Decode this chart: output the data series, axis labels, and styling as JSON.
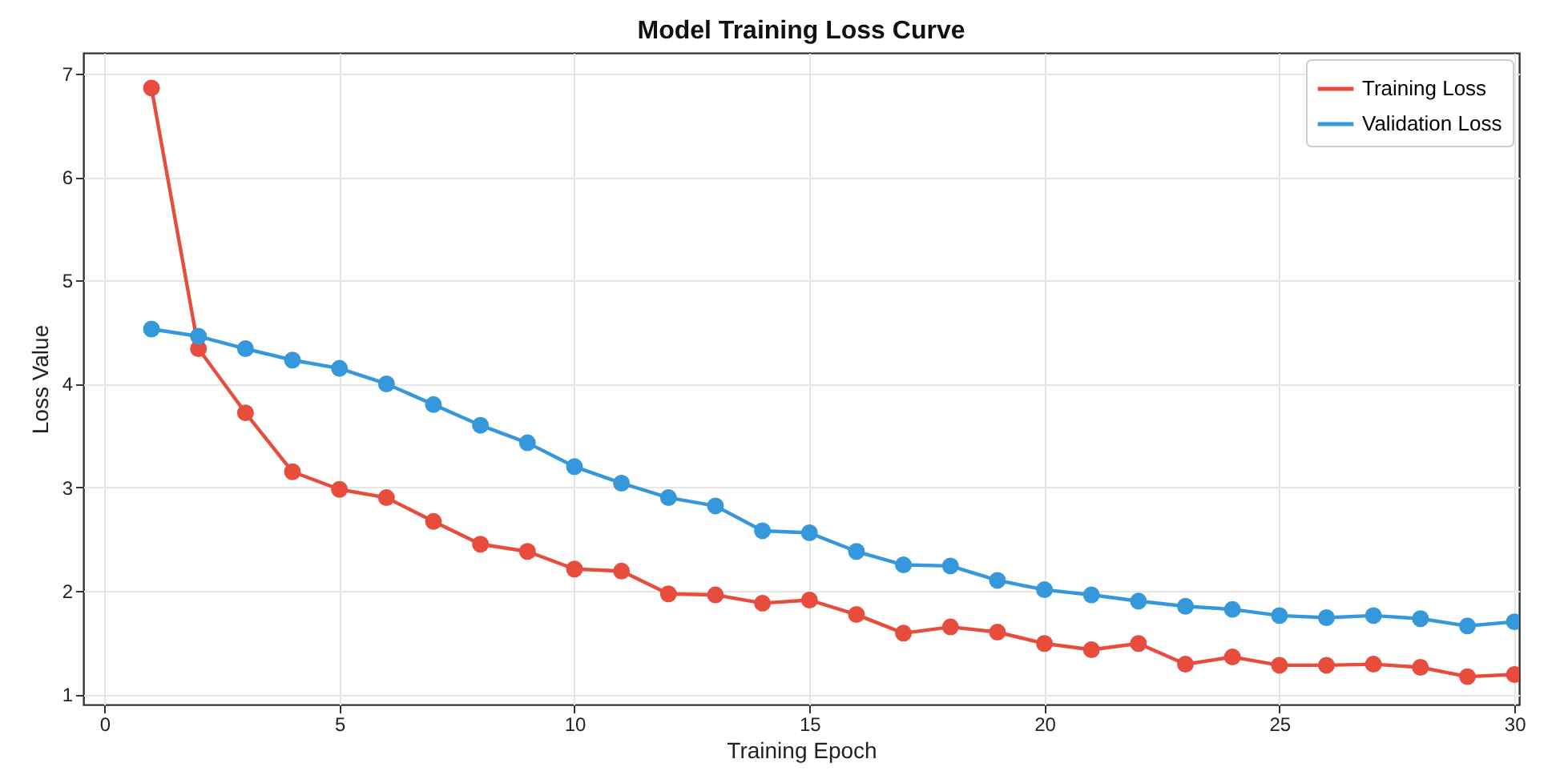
{
  "chart_data": {
    "type": "line",
    "title": "Model Training Loss Curve",
    "xlabel": "Training Epoch",
    "ylabel": "Loss Value",
    "x": [
      1,
      2,
      3,
      4,
      5,
      6,
      7,
      8,
      9,
      10,
      11,
      12,
      13,
      14,
      15,
      16,
      17,
      18,
      19,
      20,
      21,
      22,
      23,
      24,
      25,
      26,
      27,
      28,
      29,
      30
    ],
    "series": [
      {
        "name": "Training Loss",
        "color": "#e74c3c",
        "values": [
          6.86,
          4.34,
          3.72,
          3.15,
          2.98,
          2.9,
          2.67,
          2.45,
          2.38,
          2.21,
          2.19,
          1.97,
          1.96,
          1.88,
          1.91,
          1.77,
          1.59,
          1.65,
          1.6,
          1.49,
          1.43,
          1.49,
          1.29,
          1.36,
          1.28,
          1.28,
          1.29,
          1.26,
          1.17,
          1.19
        ]
      },
      {
        "name": "Validation Loss",
        "color": "#3498db",
        "values": [
          4.53,
          4.46,
          4.34,
          4.23,
          4.15,
          4.0,
          3.8,
          3.6,
          3.43,
          3.2,
          3.04,
          2.9,
          2.82,
          2.58,
          2.56,
          2.38,
          2.25,
          2.24,
          2.1,
          2.01,
          1.96,
          1.9,
          1.85,
          1.82,
          1.76,
          1.74,
          1.76,
          1.73,
          1.66,
          1.7
        ]
      }
    ],
    "xlim": [
      -0.45,
      30.1
    ],
    "ylim": [
      0.9,
      7.2
    ],
    "xticks": [
      0,
      5,
      10,
      15,
      20,
      25,
      30
    ],
    "yticks": [
      1,
      2,
      3,
      4,
      5,
      6,
      7
    ],
    "grid": true,
    "legend": "top right",
    "marker": "circle",
    "line_style": "solid"
  }
}
